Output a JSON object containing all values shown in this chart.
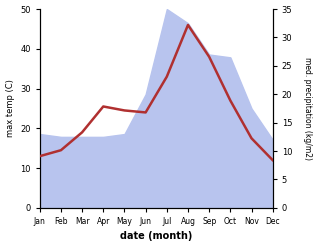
{
  "months": [
    "Jan",
    "Feb",
    "Mar",
    "Apr",
    "May",
    "Jun",
    "Jul",
    "Aug",
    "Sep",
    "Oct",
    "Nov",
    "Dec"
  ],
  "month_indices": [
    1,
    2,
    3,
    4,
    5,
    6,
    7,
    8,
    9,
    10,
    11,
    12
  ],
  "max_temp": [
    13.0,
    14.5,
    19.0,
    25.5,
    24.5,
    24.0,
    33.0,
    46.0,
    38.0,
    27.0,
    17.5,
    12.0
  ],
  "precipitation": [
    13.0,
    12.5,
    12.5,
    12.5,
    13.0,
    20.0,
    35.0,
    32.5,
    27.0,
    26.5,
    17.5,
    12.0
  ],
  "temp_color": "#b03030",
  "precip_fill_color": "#b8c4ee",
  "xlabel": "date (month)",
  "ylabel_left": "max temp (C)",
  "ylabel_right": "med. precipitation (kg/m2)",
  "ylim_left": [
    0,
    50
  ],
  "ylim_right": [
    0,
    35
  ],
  "yticks_left": [
    0,
    10,
    20,
    30,
    40,
    50
  ],
  "yticks_right": [
    0,
    5,
    10,
    15,
    20,
    25,
    30,
    35
  ],
  "bg_color": "#ffffff",
  "line_width": 1.8
}
